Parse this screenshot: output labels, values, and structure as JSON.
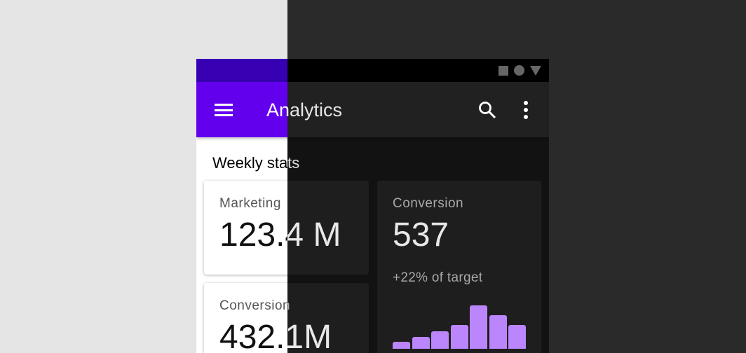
{
  "app_bar": {
    "title": "Analytics",
    "menu_icon": "menu-icon",
    "search_icon": "search-icon",
    "more_icon": "more-vert-icon"
  },
  "status_bar": {
    "icons": [
      "square-icon",
      "circle-icon",
      "triangle-icon"
    ]
  },
  "section_title": "Weekly stats",
  "cards": [
    {
      "label": "Marketing",
      "value": "123.4 M"
    },
    {
      "label": "Conversion",
      "value": "537",
      "subtitle": "+22% of target"
    },
    {
      "label": "Conversion",
      "value": "432.1M"
    }
  ],
  "colors": {
    "light_primary": "#6200ee",
    "light_primary_dark": "#3700b3",
    "dark_surface": "#121212",
    "dark_accent": "#bb86fc"
  },
  "chart_data": {
    "type": "bar",
    "values": [
      10,
      17,
      25,
      34,
      62,
      48,
      34
    ],
    "color": "#bb86fc"
  }
}
